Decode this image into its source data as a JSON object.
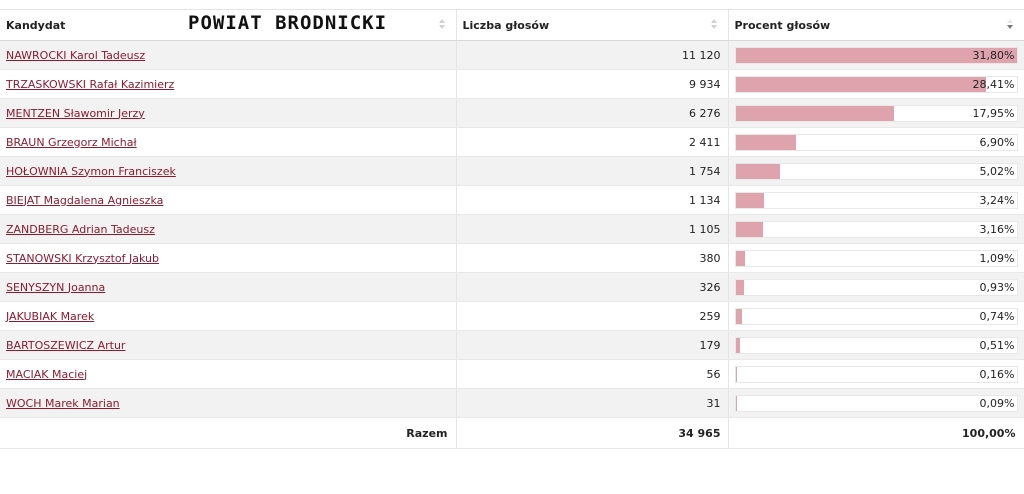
{
  "overlay_title": "POWIAT BRODNICKI",
  "columns": {
    "candidate": "Kandydat",
    "votes": "Liczba głosów",
    "percent": "Procent głosów"
  },
  "sort": {
    "active_column": "percent",
    "direction": "descending"
  },
  "bar_color": "#dfa3ae",
  "link_color": "#8a1c2e",
  "rows": [
    {
      "name": "NAWROCKI Karol Tadeusz",
      "votes": "11 120",
      "percent_label": "31,80%",
      "fill_fraction": 1.0
    },
    {
      "name": "TRZASKOWSKI Rafał Kazimierz",
      "votes": "9 934",
      "percent_label": "28,41%",
      "fill_fraction": 0.893
    },
    {
      "name": "MENTZEN Sławomir Jerzy",
      "votes": "6 276",
      "percent_label": "17,95%",
      "fill_fraction": 0.564
    },
    {
      "name": "BRAUN Grzegorz Michał",
      "votes": "2 411",
      "percent_label": "6,90%",
      "fill_fraction": 0.217
    },
    {
      "name": "HOŁOWNIA Szymon Franciszek",
      "votes": "1 754",
      "percent_label": "5,02%",
      "fill_fraction": 0.158
    },
    {
      "name": "BIEJAT Magdalena Agnieszka",
      "votes": "1 134",
      "percent_label": "3,24%",
      "fill_fraction": 0.102
    },
    {
      "name": "ZANDBERG Adrian Tadeusz",
      "votes": "1 105",
      "percent_label": "3,16%",
      "fill_fraction": 0.099
    },
    {
      "name": "STANOWSKI Krzysztof Jakub",
      "votes": "380",
      "percent_label": "1,09%",
      "fill_fraction": 0.034
    },
    {
      "name": "SENYSZYN Joanna",
      "votes": "326",
      "percent_label": "0,93%",
      "fill_fraction": 0.029
    },
    {
      "name": "JAKUBIAK Marek",
      "votes": "259",
      "percent_label": "0,74%",
      "fill_fraction": 0.023
    },
    {
      "name": "BARTOSZEWICZ Artur",
      "votes": "179",
      "percent_label": "0,51%",
      "fill_fraction": 0.016
    },
    {
      "name": "MACIAK Maciej",
      "votes": "56",
      "percent_label": "0,16%",
      "fill_fraction": 0.005
    },
    {
      "name": "WOCH Marek Marian",
      "votes": "31",
      "percent_label": "0,09%",
      "fill_fraction": 0.003
    }
  ],
  "footer": {
    "label": "Razem",
    "votes": "34 965",
    "percent": "100,00%"
  }
}
